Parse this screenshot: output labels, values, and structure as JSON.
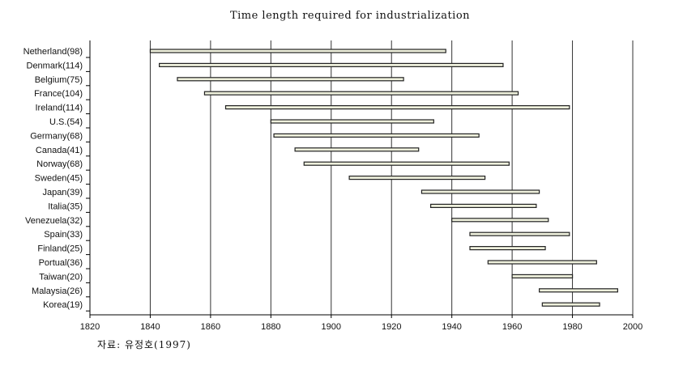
{
  "chart_data": {
    "type": "bar",
    "orientation": "horizontal-range",
    "title": "Time length required for industrialization",
    "source": "자료: 유정호(1997)",
    "xlim": [
      1820,
      2000
    ],
    "xticks": [
      1820,
      1840,
      1860,
      1880,
      1900,
      1920,
      1940,
      1960,
      1980,
      2000
    ],
    "grid": true,
    "categories": [
      "Netherland(98)",
      "Denmark(114)",
      "Belgium(75)",
      "France(104)",
      "Ireland(114)",
      "U.S.(54)",
      "Germany(68)",
      "Canada(41)",
      "Norway(68)",
      "Sweden(45)",
      "Japan(39)",
      "Italia(35)",
      "Venezuela(32)",
      "Spain(33)",
      "Finland(25)",
      "Portual(36)",
      "Taiwan(20)",
      "Malaysia(26)",
      "Korea(19)"
    ],
    "ranges": [
      [
        1840,
        1938
      ],
      [
        1843,
        1957
      ],
      [
        1849,
        1924
      ],
      [
        1858,
        1962
      ],
      [
        1865,
        1979
      ],
      [
        1880,
        1934
      ],
      [
        1881,
        1949
      ],
      [
        1888,
        1929
      ],
      [
        1891,
        1959
      ],
      [
        1906,
        1951
      ],
      [
        1930,
        1969
      ],
      [
        1933,
        1968
      ],
      [
        1940,
        1972
      ],
      [
        1946,
        1979
      ],
      [
        1946,
        1971
      ],
      [
        1952,
        1988
      ],
      [
        1960,
        1980
      ],
      [
        1969,
        1995
      ],
      [
        1970,
        1989
      ]
    ],
    "colors": {
      "bar_fill": "#eef0dc",
      "bar_stroke": "#222222",
      "grid": "#333333"
    }
  }
}
